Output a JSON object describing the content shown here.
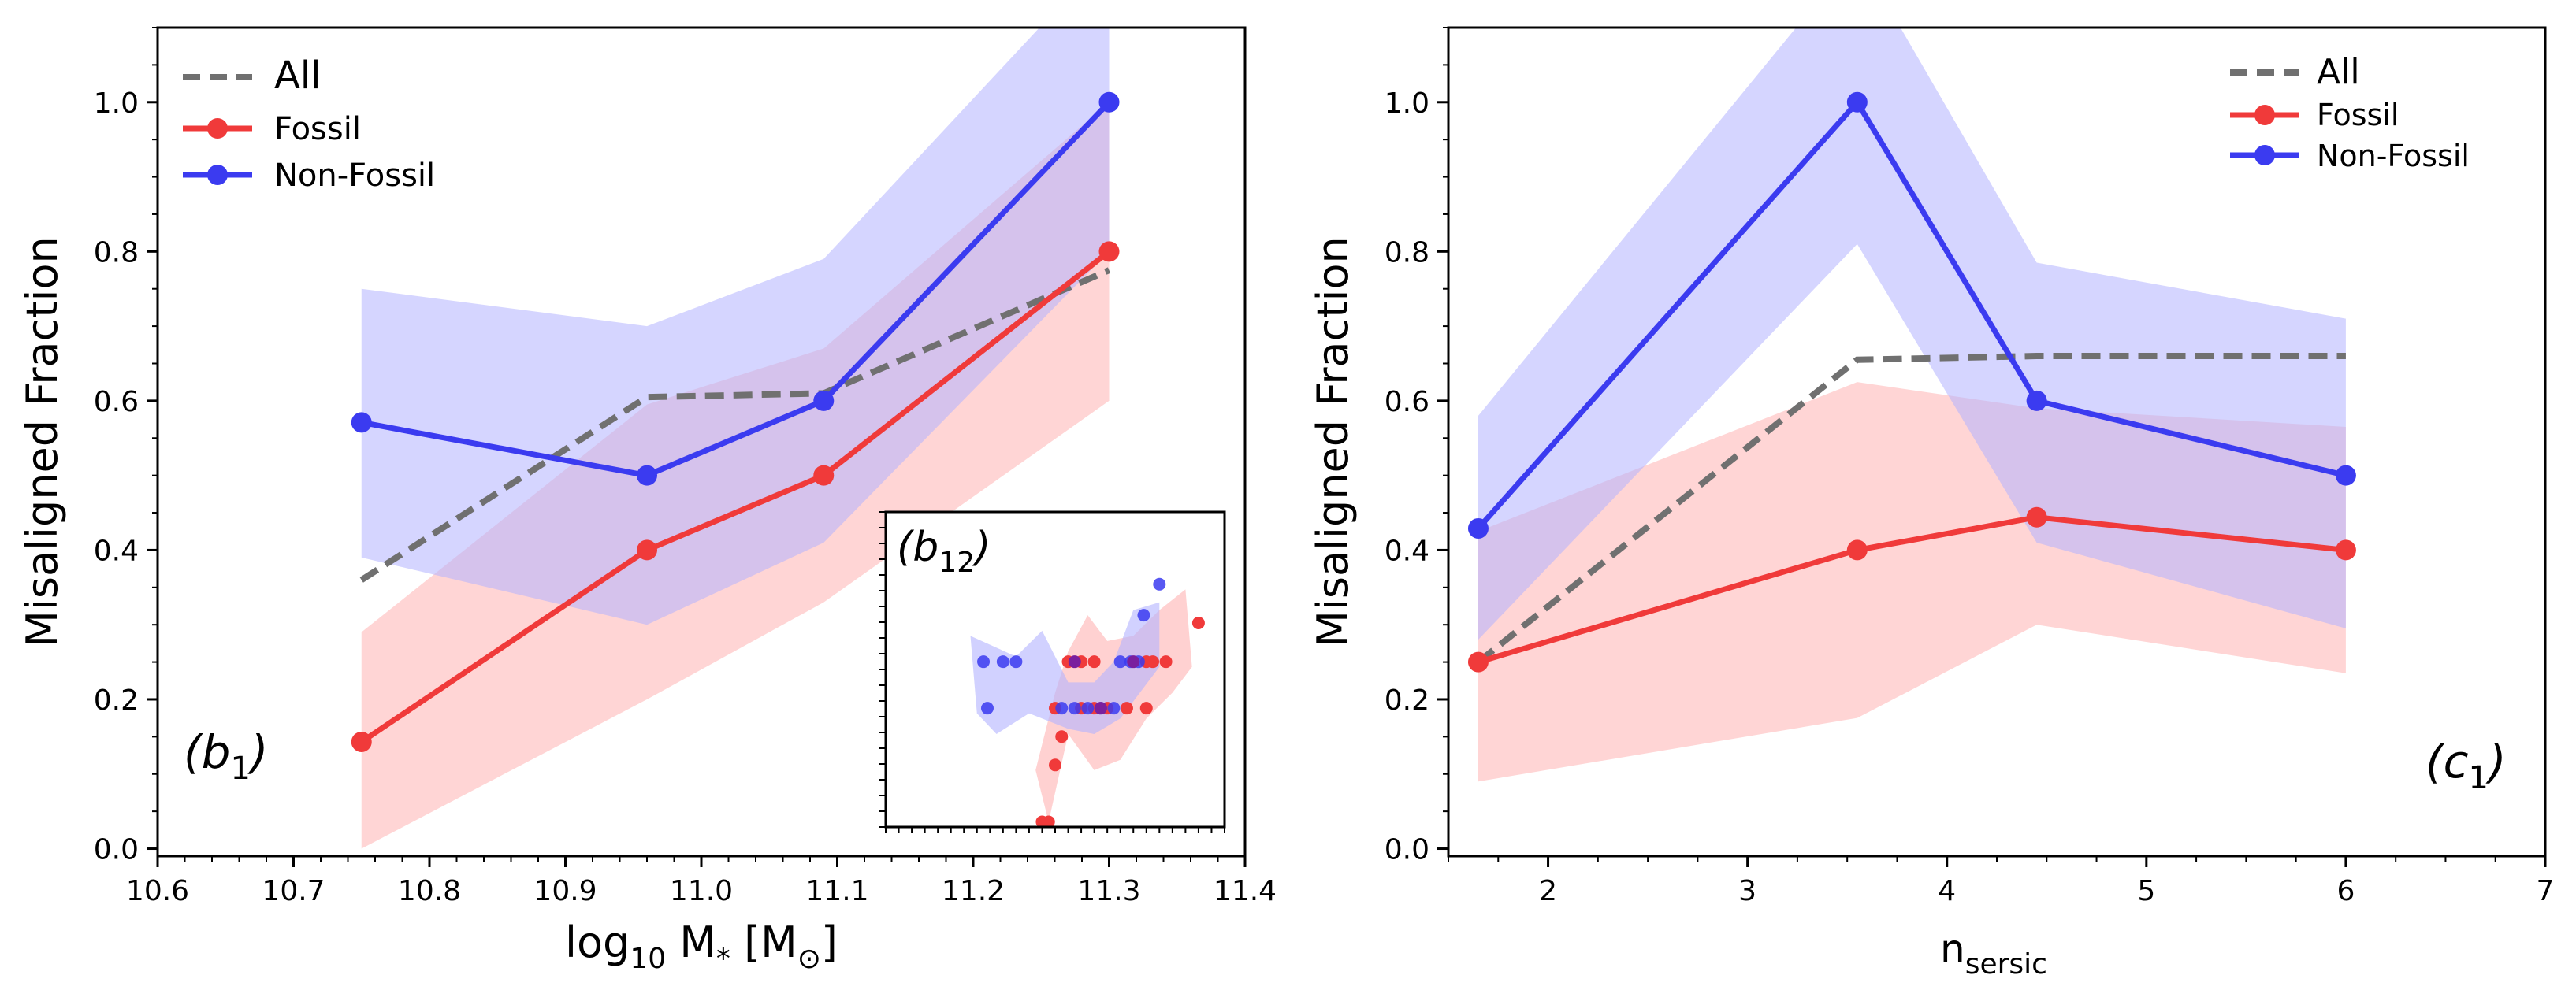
{
  "colors": {
    "fossil": "#f03a3a",
    "nonfossil": "#3b3bf0",
    "all": "#707070",
    "fossil_band": "#ffb3b3",
    "nonfossil_band": "#b3b3ff"
  },
  "chart_data": [
    {
      "type": "line",
      "panel_label_main": "b",
      "panel_label_sub": "1",
      "xlabel_prefix": "log",
      "xlabel_sub": "10",
      "xlabel_mid": " M",
      "xlabel_star": "*",
      "xlabel_bracket_open": " [M",
      "xlabel_sun": "⊙",
      "xlabel_bracket_close": "]",
      "ylabel": "Misaligned Fraction",
      "xlim": [
        10.6,
        11.4
      ],
      "ylim": [
        -0.01,
        1.1
      ],
      "xticks": [
        "10.6",
        "10.7",
        "10.8",
        "10.9",
        "11.0",
        "11.1",
        "11.2",
        "11.3",
        "11.4"
      ],
      "yticks": [
        "0.0",
        "0.2",
        "0.4",
        "0.6",
        "0.8",
        "1.0"
      ],
      "legend": {
        "location": "top-left",
        "entries": [
          "All",
          "Fossil",
          "Non-Fossil"
        ]
      },
      "series": [
        {
          "name": "All",
          "style": "dashed",
          "x": [
            10.75,
            10.96,
            11.09,
            11.3
          ],
          "y": [
            0.36,
            0.605,
            0.61,
            0.775
          ]
        },
        {
          "name": "Fossil",
          "x": [
            10.75,
            10.96,
            11.09,
            11.3
          ],
          "y": [
            0.143,
            0.4,
            0.5,
            0.8
          ],
          "band_low": [
            0.0,
            0.2,
            0.33,
            0.6
          ],
          "band_high": [
            0.29,
            0.595,
            0.67,
            1.0
          ]
        },
        {
          "name": "Non-Fossil",
          "x": [
            10.75,
            10.96,
            11.09,
            11.3
          ],
          "y": [
            0.571,
            0.5,
            0.6,
            1.0
          ],
          "band_low": [
            0.39,
            0.3,
            0.41,
            0.8
          ],
          "band_high": [
            0.75,
            0.7,
            0.79,
            1.2
          ]
        }
      ],
      "inset": {
        "label_main": "b",
        "label_sub": "12",
        "location": "lower-right",
        "xlim": [
          11.1,
          11.36
        ],
        "ylim": [
          -0.02,
          1.2
        ],
        "blue_points": [
          [
            11.175,
            0.62
          ],
          [
            11.19,
            0.62
          ],
          [
            11.2,
            0.62
          ],
          [
            11.178,
            0.44
          ],
          [
            11.235,
            0.44
          ],
          [
            11.245,
            0.44
          ],
          [
            11.255,
            0.44
          ],
          [
            11.265,
            0.44
          ],
          [
            11.275,
            0.44
          ],
          [
            11.28,
            0.62
          ],
          [
            11.288,
            0.62
          ],
          [
            11.294,
            0.62
          ],
          [
            11.298,
            0.8
          ],
          [
            11.31,
            0.92
          ]
        ],
        "red_points": [
          [
            11.22,
            0.0
          ],
          [
            11.225,
            0.0
          ],
          [
            11.23,
            0.22
          ],
          [
            11.235,
            0.33
          ],
          [
            11.23,
            0.44
          ],
          [
            11.25,
            0.44
          ],
          [
            11.26,
            0.44
          ],
          [
            11.27,
            0.44
          ],
          [
            11.285,
            0.44
          ],
          [
            11.3,
            0.44
          ],
          [
            11.24,
            0.62
          ],
          [
            11.25,
            0.62
          ],
          [
            11.26,
            0.62
          ],
          [
            11.3,
            0.62
          ],
          [
            11.305,
            0.62
          ],
          [
            11.315,
            0.62
          ],
          [
            11.34,
            0.77
          ]
        ],
        "purple_points": [
          [
            11.245,
            0.62
          ],
          [
            11.29,
            0.62
          ],
          [
            11.265,
            0.44
          ]
        ],
        "blue_band": [
          [
            11.165,
            0.72
          ],
          [
            11.2,
            0.64
          ],
          [
            11.22,
            0.74
          ],
          [
            11.24,
            0.54
          ],
          [
            11.26,
            0.54
          ],
          [
            11.275,
            0.62
          ],
          [
            11.29,
            0.82
          ],
          [
            11.31,
            0.85
          ],
          [
            11.31,
            0.6
          ],
          [
            11.28,
            0.4
          ],
          [
            11.26,
            0.34
          ],
          [
            11.24,
            0.36
          ],
          [
            11.21,
            0.42
          ],
          [
            11.185,
            0.34
          ],
          [
            11.17,
            0.42
          ]
        ],
        "red_band": [
          [
            11.215,
            0.2
          ],
          [
            11.23,
            0.5
          ],
          [
            11.24,
            0.66
          ],
          [
            11.255,
            0.8
          ],
          [
            11.27,
            0.7
          ],
          [
            11.29,
            0.72
          ],
          [
            11.31,
            0.82
          ],
          [
            11.33,
            0.9
          ],
          [
            11.335,
            0.6
          ],
          [
            11.32,
            0.5
          ],
          [
            11.3,
            0.4
          ],
          [
            11.28,
            0.24
          ],
          [
            11.26,
            0.2
          ],
          [
            11.24,
            0.34
          ],
          [
            11.225,
            0.0
          ]
        ]
      }
    },
    {
      "type": "line",
      "panel_label_main": "c",
      "panel_label_sub": "1",
      "xlabel_main": "n",
      "xlabel_sub": "sersic",
      "ylabel": "Misaligned Fraction",
      "xlim": [
        1.5,
        7.0
      ],
      "ylim": [
        -0.01,
        1.1
      ],
      "xticks": [
        "2",
        "3",
        "4",
        "5",
        "6",
        "7"
      ],
      "yticks": [
        "0.0",
        "0.2",
        "0.4",
        "0.6",
        "0.8",
        "1.0"
      ],
      "legend": {
        "location": "top-right",
        "entries": [
          "All",
          "Fossil",
          "Non-Fossil"
        ]
      },
      "series": [
        {
          "name": "All",
          "style": "dashed",
          "x": [
            1.65,
            3.55,
            4.45,
            6.0
          ],
          "y": [
            0.25,
            0.655,
            0.66,
            0.66
          ]
        },
        {
          "name": "Fossil",
          "x": [
            1.65,
            3.55,
            4.45,
            6.0
          ],
          "y": [
            0.25,
            0.4,
            0.444,
            0.4
          ],
          "band_low": [
            0.09,
            0.175,
            0.3,
            0.235
          ],
          "band_high": [
            0.425,
            0.625,
            0.59,
            0.565
          ]
        },
        {
          "name": "Non-Fossil",
          "x": [
            1.65,
            3.55,
            4.45,
            6.0
          ],
          "y": [
            0.429,
            1.0,
            0.6,
            0.5
          ],
          "band_low": [
            0.28,
            0.81,
            0.41,
            0.295
          ],
          "band_high": [
            0.58,
            1.2,
            0.785,
            0.71
          ]
        }
      ]
    }
  ]
}
